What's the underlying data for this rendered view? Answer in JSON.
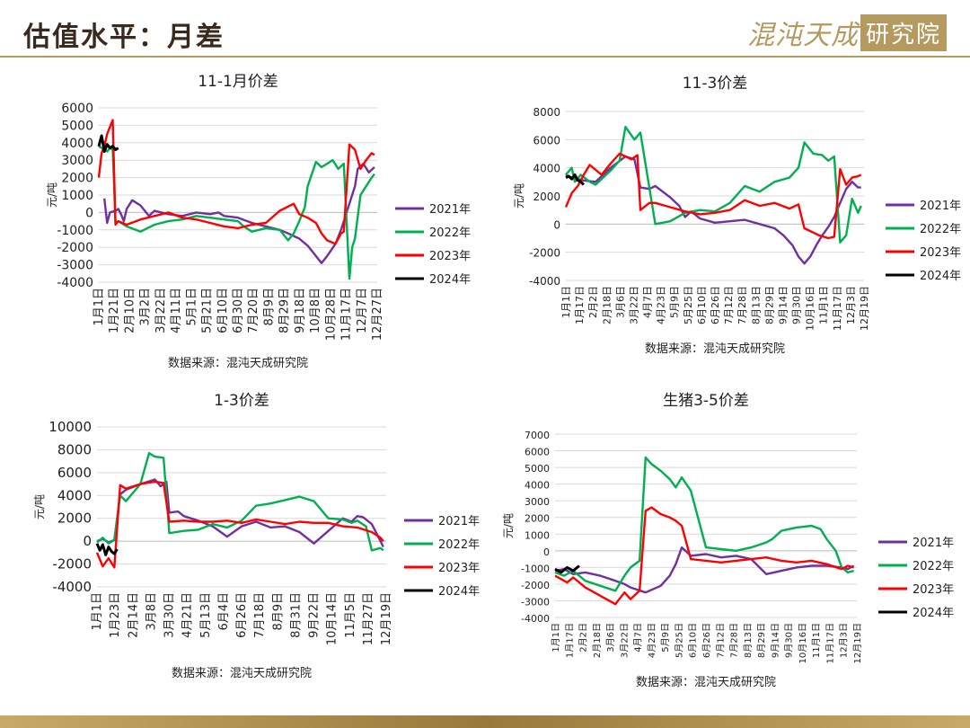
{
  "header": {
    "title": "估值水平：月差",
    "brand_script": "混沌天成",
    "brand_box": "研究院"
  },
  "colors": {
    "2021年": "#7030a0",
    "2022年": "#00b050",
    "2023年": "#ff0000",
    "2024年": "#000000"
  },
  "chart_data": [
    {
      "type": "line",
      "title": "11-1月价差",
      "ylabel": "元/吨",
      "source": "数据来源：混沌天成研究院",
      "ylim": [
        -4000,
        6000
      ],
      "yticks": [
        "6000",
        "5000",
        "4000",
        "3000",
        "2000",
        "1000",
        "0",
        "-1000",
        "-2000",
        "-3000",
        "-4000"
      ],
      "x_ticks": [
        "1月1日",
        "1月21日",
        "2月10日",
        "3月2日",
        "3月22日",
        "4月11日",
        "5月1日",
        "5月21日",
        "6月10日",
        "6月30日",
        "7月20日",
        "8月9日",
        "8月29日",
        "9月18日",
        "10月8日",
        "10月28日",
        "11月17日",
        "12月7日",
        "12月27日"
      ],
      "series": [
        {
          "name": "2021年",
          "x": [
            0.02,
            0.03,
            0.04,
            0.06,
            0.07,
            0.08,
            0.09,
            0.1,
            0.12,
            0.15,
            0.18,
            0.2,
            0.25,
            0.3,
            0.35,
            0.4,
            0.43,
            0.45,
            0.5,
            0.55,
            0.6,
            0.65,
            0.68,
            0.72,
            0.75,
            0.78,
            0.8,
            0.82,
            0.85,
            0.87,
            0.88,
            0.9,
            0.92,
            0.93,
            0.95,
            0.97,
            0.99
          ],
          "y": [
            800,
            -600,
            0,
            100,
            200,
            -100,
            -500,
            200,
            700,
            400,
            -200,
            100,
            -100,
            -200,
            0,
            -100,
            0,
            -200,
            -300,
            -600,
            -800,
            -1000,
            -1200,
            -1500,
            -1900,
            -2500,
            -2900,
            -2500,
            -1800,
            -1000,
            -500,
            500,
            1500,
            2500,
            2800,
            2300,
            2600
          ]
        },
        {
          "name": "2022年",
          "x": [
            0.0,
            0.03,
            0.04,
            0.05,
            0.06,
            0.07,
            0.1,
            0.15,
            0.2,
            0.25,
            0.3,
            0.35,
            0.4,
            0.45,
            0.5,
            0.52,
            0.55,
            0.6,
            0.65,
            0.68,
            0.7,
            0.72,
            0.74,
            0.75,
            0.78,
            0.8,
            0.82,
            0.84,
            0.86,
            0.88,
            0.9,
            0.91,
            0.92,
            0.94,
            0.96,
            0.98,
            0.99
          ],
          "y": [
            3800,
            3500,
            3700,
            3600,
            -600,
            -500,
            -800,
            -1100,
            -700,
            -500,
            -400,
            -200,
            -300,
            -400,
            -500,
            -800,
            -1100,
            -900,
            -1000,
            -1600,
            -1200,
            -500,
            300,
            1500,
            2900,
            2600,
            2800,
            3000,
            2500,
            2800,
            -3800,
            -2000,
            -1500,
            1000,
            1500,
            2000,
            2200
          ]
        },
        {
          "name": "2023年",
          "x": [
            0.0,
            0.01,
            0.02,
            0.03,
            0.04,
            0.05,
            0.06,
            0.07,
            0.1,
            0.15,
            0.2,
            0.25,
            0.3,
            0.35,
            0.4,
            0.45,
            0.5,
            0.55,
            0.6,
            0.65,
            0.7,
            0.72,
            0.75,
            0.78,
            0.8,
            0.82,
            0.85,
            0.86,
            0.87,
            0.88,
            0.9,
            0.92,
            0.94,
            0.96,
            0.98,
            0.99
          ],
          "y": [
            2000,
            3400,
            3800,
            4500,
            4900,
            5300,
            -700,
            -500,
            -700,
            -400,
            -200,
            0,
            -300,
            -400,
            -600,
            -800,
            -900,
            -700,
            -600,
            100,
            500,
            -100,
            -300,
            -600,
            -1200,
            -1600,
            -1800,
            -1500,
            -1200,
            -1100,
            3900,
            3600,
            2500,
            3000,
            3400,
            3300
          ]
        },
        {
          "name": "2024年",
          "x": [
            0.0,
            0.01,
            0.02,
            0.03,
            0.04,
            0.05,
            0.06,
            0.07
          ],
          "y": [
            3800,
            4400,
            3500,
            3900,
            3700,
            3800,
            3600,
            3700
          ]
        }
      ]
    },
    {
      "type": "line",
      "title": "11-3价差",
      "ylabel": "元/吨",
      "source": "数据来源：混沌天成研究院",
      "ylim": [
        -4000,
        8000
      ],
      "yticks": [
        "8000",
        "6000",
        "4000",
        "2000",
        "0",
        "-2000",
        "-4000"
      ],
      "x_ticks": [
        "1月1日",
        "1月17日",
        "2月2日",
        "2月18日",
        "3月6日",
        "3月22日",
        "4月7日",
        "4月23日",
        "5月9日",
        "5月25日",
        "6月10日",
        "6月26日",
        "7月12日",
        "7月28日",
        "8月13日",
        "8月29日",
        "9月14日",
        "9月30日",
        "10月16日",
        "11月1日",
        "11月17日",
        "12月3日",
        "12月19日"
      ],
      "series": [
        {
          "name": "2021年",
          "x": [
            0.0,
            0.02,
            0.04,
            0.06,
            0.1,
            0.15,
            0.2,
            0.23,
            0.25,
            0.28,
            0.3,
            0.35,
            0.38,
            0.4,
            0.42,
            0.45,
            0.5,
            0.55,
            0.6,
            0.65,
            0.7,
            0.73,
            0.76,
            0.78,
            0.8,
            0.82,
            0.84,
            0.86,
            0.88,
            0.9,
            0.92,
            0.94,
            0.96,
            0.98,
            0.99
          ],
          "y": [
            3500,
            3300,
            3200,
            3100,
            3000,
            4000,
            4800,
            4600,
            2600,
            2500,
            2700,
            1900,
            1300,
            500,
            900,
            400,
            100,
            200,
            300,
            0,
            -300,
            -800,
            -1500,
            -2300,
            -2800,
            -2300,
            -1500,
            -800,
            -200,
            500,
            1500,
            2500,
            3000,
            2600,
            2600
          ]
        },
        {
          "name": "2022年",
          "x": [
            0.0,
            0.02,
            0.03,
            0.05,
            0.08,
            0.1,
            0.15,
            0.18,
            0.2,
            0.23,
            0.25,
            0.3,
            0.35,
            0.4,
            0.45,
            0.5,
            0.55,
            0.6,
            0.65,
            0.7,
            0.75,
            0.78,
            0.8,
            0.83,
            0.86,
            0.88,
            0.9,
            0.92,
            0.94,
            0.96,
            0.98,
            0.99
          ],
          "y": [
            3500,
            4000,
            3000,
            3500,
            3000,
            2800,
            3800,
            4500,
            6900,
            6000,
            6500,
            0,
            200,
            800,
            1000,
            900,
            1500,
            2700,
            2300,
            3000,
            3300,
            4000,
            5800,
            5000,
            4900,
            4500,
            4800,
            -1300,
            -800,
            1800,
            800,
            1300
          ]
        },
        {
          "name": "2023年",
          "x": [
            0.0,
            0.01,
            0.02,
            0.04,
            0.06,
            0.08,
            0.12,
            0.15,
            0.18,
            0.2,
            0.22,
            0.24,
            0.25,
            0.28,
            0.3,
            0.35,
            0.4,
            0.45,
            0.5,
            0.55,
            0.6,
            0.65,
            0.7,
            0.75,
            0.78,
            0.8,
            0.85,
            0.88,
            0.9,
            0.92,
            0.94,
            0.96,
            0.98,
            0.99
          ],
          "y": [
            1200,
            1700,
            2200,
            2700,
            3500,
            4200,
            3500,
            4300,
            5000,
            4800,
            4600,
            4900,
            1000,
            1500,
            1500,
            1200,
            900,
            700,
            800,
            1000,
            1700,
            1300,
            1500,
            1100,
            1400,
            -300,
            -800,
            -1000,
            -900,
            3900,
            2800,
            3300,
            3400,
            3500
          ]
        },
        {
          "name": "2024年",
          "x": [
            0.0,
            0.01,
            0.02,
            0.03,
            0.04,
            0.05,
            0.06
          ],
          "y": [
            3300,
            3400,
            3200,
            3500,
            3100,
            3000,
            2800
          ]
        }
      ]
    },
    {
      "type": "line",
      "title": "1-3价差",
      "ylabel": "元/吨",
      "source": "数据来源：混沌天成研究院",
      "ylim": [
        -4000,
        10000
      ],
      "yticks": [
        "10000",
        "8000",
        "6000",
        "4000",
        "2000",
        "0",
        "-2000",
        "-4000"
      ],
      "x_ticks": [
        "1月1日",
        "1月23日",
        "2月14日",
        "3月8日",
        "3月30日",
        "4月21日",
        "5月13日",
        "6月4日",
        "6月26日",
        "7月18日",
        "8月9日",
        "8月31日",
        "9月22日",
        "10月14日",
        "11月5日",
        "11月27日",
        "12月19日"
      ],
      "series": [
        {
          "name": "2021年",
          "x": [
            0.0,
            0.02,
            0.04,
            0.06,
            0.08,
            0.1,
            0.15,
            0.2,
            0.22,
            0.24,
            0.25,
            0.28,
            0.3,
            0.35,
            0.4,
            0.45,
            0.5,
            0.55,
            0.6,
            0.65,
            0.7,
            0.75,
            0.8,
            0.85,
            0.88,
            0.9,
            0.92,
            0.95,
            0.98,
            0.99
          ],
          "y": [
            0,
            200,
            -100,
            100,
            4100,
            4500,
            5000,
            5400,
            4800,
            5200,
            2500,
            2600,
            2200,
            1800,
            1300,
            400,
            1300,
            1700,
            1200,
            1300,
            800,
            -200,
            900,
            2000,
            1700,
            2200,
            2100,
            1500,
            0,
            -500
          ]
        },
        {
          "name": "2022年",
          "x": [
            0.0,
            0.02,
            0.04,
            0.06,
            0.08,
            0.1,
            0.15,
            0.18,
            0.2,
            0.23,
            0.25,
            0.3,
            0.35,
            0.4,
            0.45,
            0.5,
            0.55,
            0.6,
            0.65,
            0.7,
            0.75,
            0.8,
            0.85,
            0.88,
            0.9,
            0.93,
            0.95,
            0.98,
            0.99
          ],
          "y": [
            -100,
            300,
            -200,
            100,
            4000,
            3500,
            5000,
            7700,
            7400,
            7300,
            700,
            900,
            1000,
            1500,
            1200,
            1800,
            3100,
            3300,
            3600,
            3900,
            3500,
            2000,
            1900,
            1600,
            1800,
            1300,
            -800,
            -600,
            -800
          ]
        },
        {
          "name": "2023年",
          "x": [
            0.0,
            0.02,
            0.04,
            0.06,
            0.08,
            0.1,
            0.15,
            0.2,
            0.23,
            0.25,
            0.3,
            0.35,
            0.4,
            0.45,
            0.5,
            0.55,
            0.6,
            0.65,
            0.7,
            0.75,
            0.8,
            0.85,
            0.9,
            0.95,
            0.98,
            0.99
          ],
          "y": [
            -1000,
            -2200,
            -1500,
            -2300,
            4900,
            4600,
            5000,
            5200,
            5100,
            1700,
            1800,
            1700,
            1700,
            1800,
            1600,
            1900,
            1700,
            1500,
            1700,
            1600,
            1600,
            1300,
            1200,
            800,
            300,
            0
          ]
        },
        {
          "name": "2024年",
          "x": [
            0.0,
            0.01,
            0.02,
            0.03,
            0.04,
            0.05,
            0.06,
            0.07
          ],
          "y": [
            -200,
            -800,
            -300,
            -1200,
            -500,
            -900,
            -1100,
            -700
          ]
        }
      ]
    },
    {
      "type": "line",
      "title": "生猪3-5价差",
      "ylabel": "元/吨",
      "source": "数据来源：混沌天成研究院",
      "ylim": [
        -4000,
        7000
      ],
      "yticks": [
        "7000",
        "6000",
        "5000",
        "4000",
        "3000",
        "2000",
        "1000",
        "0",
        "-1000",
        "-2000",
        "-3000",
        "-4000"
      ],
      "x_ticks": [
        "1月1日",
        "1月17日",
        "2月2日",
        "2月18日",
        "3月6日",
        "3月22日",
        "4月7日",
        "4月23日",
        "5月9日",
        "5月25日",
        "6月10日",
        "6月26日",
        "7月12日",
        "7月28日",
        "8月13日",
        "8月29日",
        "9月14日",
        "9月30日",
        "10月16日",
        "11月1日",
        "11月17日",
        "12月3日",
        "12月19日"
      ],
      "series": [
        {
          "name": "2021年",
          "x": [
            0.0,
            0.03,
            0.06,
            0.1,
            0.15,
            0.2,
            0.23,
            0.25,
            0.3,
            0.35,
            0.38,
            0.4,
            0.42,
            0.45,
            0.5,
            0.55,
            0.6,
            0.65,
            0.7,
            0.75,
            0.8,
            0.85,
            0.9,
            0.95,
            0.97,
            0.99
          ],
          "y": [
            -1200,
            -1100,
            -1400,
            -1300,
            -1500,
            -1800,
            -2000,
            -2200,
            -2500,
            -2100,
            -1500,
            -800,
            200,
            -300,
            -200,
            -400,
            -300,
            -500,
            -1400,
            -1200,
            -1000,
            -900,
            -900,
            -1000,
            -1100,
            -900
          ]
        },
        {
          "name": "2022年",
          "x": [
            0.0,
            0.03,
            0.06,
            0.1,
            0.15,
            0.2,
            0.23,
            0.25,
            0.28,
            0.3,
            0.32,
            0.35,
            0.38,
            0.4,
            0.42,
            0.45,
            0.5,
            0.55,
            0.6,
            0.65,
            0.7,
            0.72,
            0.75,
            0.8,
            0.85,
            0.88,
            0.9,
            0.93,
            0.95,
            0.97,
            0.99
          ],
          "y": [
            -1300,
            -1500,
            -1200,
            -1800,
            -2100,
            -2400,
            -1500,
            -1000,
            -600,
            5600,
            5200,
            4800,
            4300,
            3800,
            4400,
            3600,
            200,
            100,
            0,
            200,
            500,
            700,
            1200,
            1400,
            1500,
            1300,
            700,
            0,
            -1000,
            -1300,
            -1200
          ]
        },
        {
          "name": "2023年",
          "x": [
            0.0,
            0.02,
            0.04,
            0.06,
            0.1,
            0.15,
            0.2,
            0.23,
            0.25,
            0.28,
            0.3,
            0.32,
            0.35,
            0.38,
            0.4,
            0.42,
            0.45,
            0.5,
            0.55,
            0.6,
            0.65,
            0.7,
            0.75,
            0.8,
            0.85,
            0.9,
            0.95,
            0.97,
            0.99
          ],
          "y": [
            -1500,
            -1700,
            -1900,
            -1600,
            -2200,
            -2700,
            -3200,
            -2500,
            -2900,
            -2400,
            2400,
            2600,
            2200,
            2000,
            1800,
            1500,
            -500,
            -600,
            -700,
            -600,
            -500,
            -400,
            -600,
            -700,
            -600,
            -800,
            -1100,
            -900,
            -1000
          ]
        },
        {
          "name": "2024年",
          "x": [
            0.0,
            0.02,
            0.04,
            0.06,
            0.08
          ],
          "y": [
            -1100,
            -1300,
            -1000,
            -1200,
            -900
          ]
        }
      ]
    }
  ]
}
